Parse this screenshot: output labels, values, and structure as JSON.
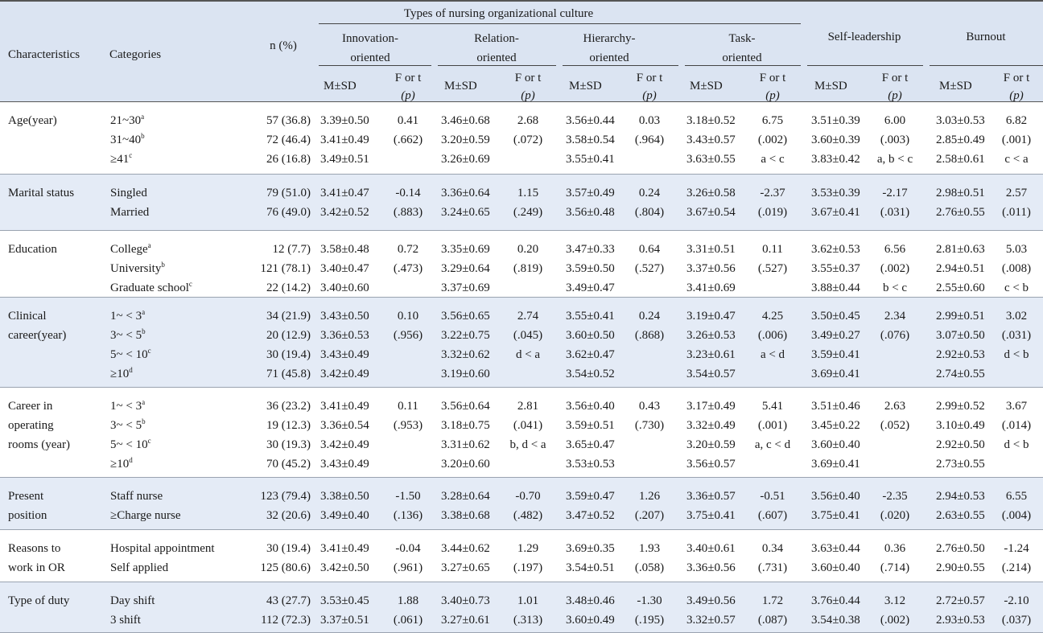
{
  "header": {
    "group_title": "Types of nursing organizational culture",
    "characteristics": "Characteristics",
    "categories": "Categories",
    "n_pct": "n (%)",
    "domains": [
      "Innovation-\noriented",
      "Relation-\noriented",
      "Hierarchy-\noriented",
      "Task-\noriented",
      "Self-leadership",
      "Burnout"
    ],
    "msd": "M±SD",
    "f_or_t": "F or t",
    "p": "(p)"
  },
  "rows": [
    {
      "characteristic": "Age(year)",
      "categories": [
        [
          "21~30",
          "a"
        ],
        [
          "31~40",
          "b"
        ],
        [
          "≥41",
          "c"
        ]
      ],
      "n": [
        "57 (36.8)",
        "72 (46.4)",
        "26 (16.8)"
      ],
      "cols": [
        {
          "msd": [
            "3.39±0.50",
            "3.41±0.49",
            "3.49±0.51"
          ],
          "ft": [
            "0.41",
            "(.662)",
            ""
          ]
        },
        {
          "msd": [
            "3.46±0.68",
            "3.20±0.59",
            "3.26±0.69"
          ],
          "ft": [
            "2.68",
            "(.072)",
            ""
          ]
        },
        {
          "msd": [
            "3.56±0.44",
            "3.58±0.54",
            "3.55±0.41"
          ],
          "ft": [
            "0.03",
            "(.964)",
            ""
          ]
        },
        {
          "msd": [
            "3.18±0.52",
            "3.43±0.57",
            "3.63±0.55"
          ],
          "ft": [
            "6.75",
            "(.002)",
            "a < c"
          ]
        },
        {
          "msd": [
            "3.51±0.39",
            "3.60±0.39",
            "3.83±0.42"
          ],
          "ft": [
            "6.00",
            "(.003)",
            "a, b < c"
          ]
        },
        {
          "msd": [
            "3.03±0.53",
            "2.85±0.49",
            "2.58±0.61"
          ],
          "ft": [
            "6.82",
            "(.001)",
            "c < a"
          ]
        }
      ]
    },
    {
      "characteristic": "Marital status",
      "categories": [
        [
          "Singled",
          ""
        ],
        [
          "Married",
          ""
        ]
      ],
      "n": [
        "79 (51.0)",
        "76 (49.0)"
      ],
      "cols": [
        {
          "msd": [
            "3.41±0.47",
            "3.42±0.52"
          ],
          "ft": [
            "-0.14",
            "(.883)"
          ]
        },
        {
          "msd": [
            "3.36±0.64",
            "3.24±0.65"
          ],
          "ft": [
            "1.15",
            "(.249)"
          ]
        },
        {
          "msd": [
            "3.57±0.49",
            "3.56±0.48"
          ],
          "ft": [
            "0.24",
            "(.804)"
          ]
        },
        {
          "msd": [
            "3.26±0.58",
            "3.67±0.54"
          ],
          "ft": [
            "-2.37",
            "(.019)"
          ]
        },
        {
          "msd": [
            "3.53±0.39",
            "3.67±0.41"
          ],
          "ft": [
            "-2.17",
            "(.031)"
          ]
        },
        {
          "msd": [
            "2.98±0.51",
            "2.76±0.55"
          ],
          "ft": [
            "2.57",
            "(.011)"
          ]
        }
      ]
    },
    {
      "characteristic": "Education",
      "categories": [
        [
          "College",
          "a"
        ],
        [
          "University",
          "b"
        ],
        [
          "Graduate school",
          "c"
        ]
      ],
      "n": [
        "12 (7.7)",
        "121 (78.1)",
        "22 (14.2)"
      ],
      "cols": [
        {
          "msd": [
            "3.58±0.48",
            "3.40±0.47",
            "3.40±0.60"
          ],
          "ft": [
            "0.72",
            "(.473)",
            ""
          ]
        },
        {
          "msd": [
            "3.35±0.69",
            "3.29±0.64",
            "3.37±0.69"
          ],
          "ft": [
            "0.20",
            "(.819)",
            ""
          ]
        },
        {
          "msd": [
            "3.47±0.33",
            "3.59±0.50",
            "3.49±0.47"
          ],
          "ft": [
            "0.64",
            "(.527)",
            ""
          ]
        },
        {
          "msd": [
            "3.31±0.51",
            "3.37±0.56",
            "3.41±0.69"
          ],
          "ft": [
            "0.11",
            "(.527)",
            ""
          ]
        },
        {
          "msd": [
            "3.62±0.53",
            "3.55±0.37",
            "3.88±0.44"
          ],
          "ft": [
            "6.56",
            "(.002)",
            "b < c"
          ]
        },
        {
          "msd": [
            "2.81±0.63",
            "2.94±0.51",
            "2.55±0.60"
          ],
          "ft": [
            "5.03",
            "(.008)",
            "c < b"
          ]
        }
      ]
    },
    {
      "characteristic": "Clinical\ncareer(year)",
      "categories": [
        [
          "1~ < 3",
          "a"
        ],
        [
          "3~ < 5",
          "b"
        ],
        [
          "5~ < 10",
          "c"
        ],
        [
          "≥10",
          "d"
        ]
      ],
      "n": [
        "34 (21.9)",
        "20 (12.9)",
        "30 (19.4)",
        "71 (45.8)"
      ],
      "cols": [
        {
          "msd": [
            "3.43±0.50",
            "3.36±0.53",
            "3.43±0.49",
            "3.42±0.49"
          ],
          "ft": [
            "0.10",
            "(.956)",
            "",
            ""
          ]
        },
        {
          "msd": [
            "3.56±0.65",
            "3.22±0.75",
            "3.32±0.62",
            "3.19±0.60"
          ],
          "ft": [
            "2.74",
            "(.045)",
            "d < a",
            ""
          ]
        },
        {
          "msd": [
            "3.55±0.41",
            "3.60±0.50",
            "3.62±0.47",
            "3.54±0.52"
          ],
          "ft": [
            "0.24",
            "(.868)",
            "",
            ""
          ]
        },
        {
          "msd": [
            "3.19±0.47",
            "3.26±0.53",
            "3.23±0.61",
            "3.54±0.57"
          ],
          "ft": [
            "4.25",
            "(.006)",
            "a < d",
            ""
          ]
        },
        {
          "msd": [
            "3.50±0.45",
            "3.49±0.27",
            "3.59±0.41",
            "3.69±0.41"
          ],
          "ft": [
            "2.34",
            "(.076)",
            "",
            ""
          ]
        },
        {
          "msd": [
            "2.99±0.51",
            "3.07±0.50",
            "2.92±0.53",
            "2.74±0.55"
          ],
          "ft": [
            "3.02",
            "(.031)",
            "d < b",
            ""
          ]
        }
      ]
    },
    {
      "characteristic": "Career in\noperating\nrooms (year)",
      "categories": [
        [
          "1~ < 3",
          "a"
        ],
        [
          "3~ < 5",
          "b"
        ],
        [
          "5~ < 10",
          "c"
        ],
        [
          "≥10",
          "d"
        ]
      ],
      "n": [
        "36 (23.2)",
        "19 (12.3)",
        "30 (19.3)",
        "70 (45.2)"
      ],
      "cols": [
        {
          "msd": [
            "3.41±0.49",
            "3.36±0.54",
            "3.42±0.49",
            "3.43±0.49"
          ],
          "ft": [
            "0.11",
            "(.953)",
            "",
            ""
          ]
        },
        {
          "msd": [
            "3.56±0.64",
            "3.18±0.75",
            "3.31±0.62",
            "3.20±0.60"
          ],
          "ft": [
            "2.81",
            "(.041)",
            "b, d < a",
            ""
          ]
        },
        {
          "msd": [
            "3.56±0.40",
            "3.59±0.51",
            "3.65±0.47",
            "3.53±0.53"
          ],
          "ft": [
            "0.43",
            "(.730)",
            "",
            ""
          ]
        },
        {
          "msd": [
            "3.17±0.49",
            "3.32±0.49",
            "3.20±0.59",
            "3.56±0.57"
          ],
          "ft": [
            "5.41",
            "(.001)",
            "a, c < d",
            ""
          ]
        },
        {
          "msd": [
            "3.51±0.46",
            "3.45±0.22",
            "3.60±0.40",
            "3.69±0.41"
          ],
          "ft": [
            "2.63",
            "(.052)",
            "",
            ""
          ]
        },
        {
          "msd": [
            "2.99±0.52",
            "3.10±0.49",
            "2.92±0.50",
            "2.73±0.55"
          ],
          "ft": [
            "3.67",
            "(.014)",
            "d < b",
            ""
          ]
        }
      ]
    },
    {
      "characteristic": "Present\nposition",
      "categories": [
        [
          "Staff nurse",
          ""
        ],
        [
          "≥Charge nurse",
          ""
        ]
      ],
      "n": [
        "123 (79.4)",
        "32 (20.6)"
      ],
      "cols": [
        {
          "msd": [
            "3.38±0.50",
            "3.49±0.40"
          ],
          "ft": [
            "-1.50",
            "(.136)"
          ]
        },
        {
          "msd": [
            "3.28±0.64",
            "3.38±0.68"
          ],
          "ft": [
            "-0.70",
            "(.482)"
          ]
        },
        {
          "msd": [
            "3.59±0.47",
            "3.47±0.52"
          ],
          "ft": [
            "1.26",
            "(.207)"
          ]
        },
        {
          "msd": [
            "3.36±0.57",
            "3.75±0.41"
          ],
          "ft": [
            "-0.51",
            "(.607)"
          ]
        },
        {
          "msd": [
            "3.56±0.40",
            "3.75±0.41"
          ],
          "ft": [
            "-2.35",
            "(.020)"
          ]
        },
        {
          "msd": [
            "2.94±0.53",
            "2.63±0.55"
          ],
          "ft": [
            "6.55",
            "(.004)"
          ]
        }
      ]
    },
    {
      "characteristic": "Reasons to\nwork in OR",
      "categories": [
        [
          "Hospital appointment",
          ""
        ],
        [
          "Self applied",
          ""
        ]
      ],
      "n": [
        "30 (19.4)",
        "125 (80.6)"
      ],
      "cols": [
        {
          "msd": [
            "3.41±0.49",
            "3.42±0.50"
          ],
          "ft": [
            "-0.04",
            "(.961)"
          ]
        },
        {
          "msd": [
            "3.44±0.62",
            "3.27±0.65"
          ],
          "ft": [
            "1.29",
            "(.197)"
          ]
        },
        {
          "msd": [
            "3.69±0.35",
            "3.54±0.51"
          ],
          "ft": [
            "1.93",
            "(.058)"
          ]
        },
        {
          "msd": [
            "3.40±0.61",
            "3.36±0.56"
          ],
          "ft": [
            "0.34",
            "(.731)"
          ]
        },
        {
          "msd": [
            "3.63±0.44",
            "3.60±0.40"
          ],
          "ft": [
            "0.36",
            "(.714)"
          ]
        },
        {
          "msd": [
            "2.76±0.50",
            "2.90±0.55"
          ],
          "ft": [
            "-1.24",
            "(.214)"
          ]
        }
      ]
    },
    {
      "characteristic": "Type of duty",
      "categories": [
        [
          "Day shift",
          ""
        ],
        [
          "3 shift",
          ""
        ]
      ],
      "n": [
        "43 (27.7)",
        "112 (72.3)"
      ],
      "cols": [
        {
          "msd": [
            "3.53±0.45",
            "3.37±0.51"
          ],
          "ft": [
            "1.88",
            "(.061)"
          ]
        },
        {
          "msd": [
            "3.40±0.73",
            "3.27±0.61"
          ],
          "ft": [
            "1.01",
            "(.313)"
          ]
        },
        {
          "msd": [
            "3.48±0.46",
            "3.60±0.49"
          ],
          "ft": [
            "-1.30",
            "(.195)"
          ]
        },
        {
          "msd": [
            "3.49±0.56",
            "3.32±0.57"
          ],
          "ft": [
            "1.72",
            "(.087)"
          ]
        },
        {
          "msd": [
            "3.76±0.44",
            "3.54±0.38"
          ],
          "ft": [
            "3.12",
            "(.002)"
          ]
        },
        {
          "msd": [
            "2.72±0.57",
            "2.93±0.53"
          ],
          "ft": [
            "-2.10",
            "(.037)"
          ]
        }
      ]
    }
  ]
}
